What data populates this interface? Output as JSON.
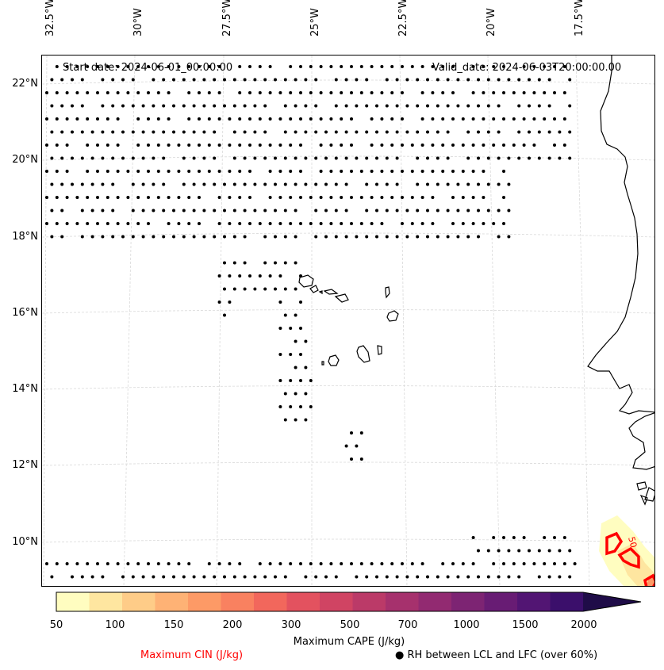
{
  "map": {
    "lon_labels": [
      "32.5°W",
      "30°W",
      "27.5°W",
      "25°W",
      "22.5°W",
      "20°W",
      "17.5°W"
    ],
    "lat_labels": [
      "22°N",
      "20°N",
      "18°N",
      "16°N",
      "14°N",
      "12°N",
      "10°N"
    ],
    "start_date": "Start date: 2024-06-01_00:00:00",
    "valid_date": "Valid_date: 2024-06-03T20:00:00.00",
    "contour_label": "50",
    "coast_color": "#000000",
    "cin_color": "#ff0000",
    "grid_color": "#d9d9d9"
  },
  "colorbar": {
    "ticks": [
      "50",
      "100",
      "150",
      "200",
      "300",
      "500",
      "700",
      "1000",
      "1500",
      "2000"
    ],
    "colors": [
      "#fffdc0",
      "#fee6a0",
      "#fecc88",
      "#feb275",
      "#fd9a66",
      "#f98160",
      "#f2675c",
      "#e3525f",
      "#d04463",
      "#bb3a68",
      "#a6316d",
      "#922a71",
      "#7d2473",
      "#681c74",
      "#521573",
      "#3b0f6b",
      "#1f0c48"
    ],
    "title": "Maximum CAPE (J/kg)"
  },
  "legend": {
    "cin": "Maximum CIN (J/kg)",
    "rh_marker": "●",
    "rh": "RH between LCL and LFC (over 60%)"
  }
}
